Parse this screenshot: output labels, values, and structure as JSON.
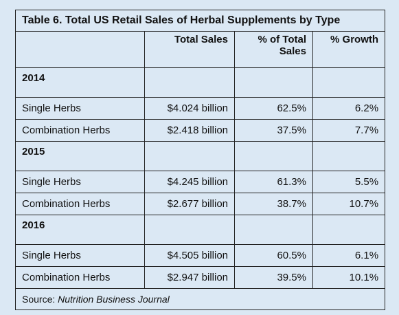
{
  "table": {
    "title": "Table 6. Total US Retail Sales of Herbal Supplements by Type",
    "columns": [
      "",
      "Total Sales",
      "% of Total Sales",
      "% Growth"
    ],
    "sections": [
      {
        "year": "2014",
        "rows": [
          [
            "Single Herbs",
            "$4.024 billion",
            "62.5%",
            "6.2%"
          ],
          [
            "Combination Herbs",
            "$2.418 billion",
            "37.5%",
            "7.7%"
          ]
        ]
      },
      {
        "year": "2015",
        "rows": [
          [
            "Single Herbs",
            "$4.245 billion",
            "61.3%",
            "5.5%"
          ],
          [
            "Combination Herbs",
            "$2.677 billion",
            "38.7%",
            "10.7%"
          ]
        ]
      },
      {
        "year": "2016",
        "rows": [
          [
            "Single Herbs",
            "$4.505 billion",
            "60.5%",
            "6.1%"
          ],
          [
            "Combination Herbs",
            "$2.947 billion",
            "39.5%",
            "10.1%"
          ]
        ]
      }
    ],
    "source_label": "Source:",
    "source": "Nutrition Business Journal"
  }
}
